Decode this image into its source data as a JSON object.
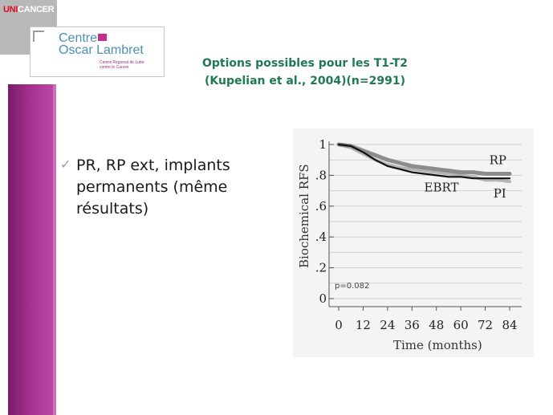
{
  "header": {
    "network_logo": {
      "prefix": "UNI",
      "suffix": "CANCER"
    },
    "center_logo": {
      "line1": "Centre",
      "line2": "Oscar Lambret",
      "sub1": "Centre Régional de Lutte",
      "sub2": "contre le Cancer"
    }
  },
  "slide": {
    "title_line1": "Options possibles pour les T1-T2",
    "title_line2": "(Kupelian et al., 2004)(n=2991)",
    "bullet_lines": [
      "PR, RP ext, implants",
      "permanents (même",
      "résultats)"
    ]
  },
  "colors": {
    "title": "#1f7a52",
    "sidebar": "#a3308f",
    "unicancer_red": "#e10a1e"
  },
  "icons": {
    "bullet": "checkmark-icon"
  },
  "chart_data": {
    "type": "line",
    "ylabel": "Biochemical RFS",
    "xlabel": "Time (months)",
    "xlim": [
      0,
      84
    ],
    "ylim": [
      0,
      1
    ],
    "x_ticks": [
      0,
      12,
      24,
      36,
      48,
      60,
      72,
      84
    ],
    "x_tick_labels": [
      "0",
      "12",
      "24",
      "36",
      "48",
      "60",
      "72",
      "84"
    ],
    "y_ticks": [
      0,
      0.2,
      0.4,
      0.6,
      0.8,
      1
    ],
    "y_tick_labels": [
      "0",
      ".2",
      ".4",
      ".6",
      ".8",
      "1"
    ],
    "grid": true,
    "annotation": "p=0.082",
    "series": [
      {
        "name": "RP",
        "color": "#8c8c8c",
        "x": [
          0,
          6,
          12,
          18,
          24,
          30,
          36,
          42,
          48,
          54,
          60,
          66,
          72,
          78,
          84
        ],
        "y": [
          1,
          0.99,
          0.96,
          0.93,
          0.9,
          0.88,
          0.86,
          0.85,
          0.84,
          0.83,
          0.82,
          0.82,
          0.81,
          0.81,
          0.81
        ]
      },
      {
        "name": "EBRT",
        "color": "#111111",
        "x": [
          0,
          6,
          12,
          18,
          24,
          30,
          36,
          42,
          48,
          54,
          60,
          66,
          72,
          78,
          84
        ],
        "y": [
          1,
          0.99,
          0.95,
          0.9,
          0.86,
          0.84,
          0.82,
          0.81,
          0.8,
          0.79,
          0.79,
          0.78,
          0.78,
          0.78,
          0.78
        ]
      },
      {
        "name": "PI",
        "color": "#b4b4b4",
        "x": [
          0,
          6,
          12,
          18,
          24,
          30,
          36,
          42,
          48,
          54,
          60,
          66,
          72,
          78,
          84
        ],
        "y": [
          1,
          0.98,
          0.94,
          0.9,
          0.87,
          0.85,
          0.84,
          0.83,
          0.82,
          0.81,
          0.8,
          0.79,
          0.77,
          0.77,
          0.76
        ]
      }
    ],
    "series_labels": [
      {
        "text": "RP",
        "series": "RP",
        "at_x": 74
      },
      {
        "text": "EBRT",
        "series": "EBRT",
        "at_x": 42
      },
      {
        "text": "PI",
        "series": "PI",
        "at_x": 76
      }
    ]
  }
}
